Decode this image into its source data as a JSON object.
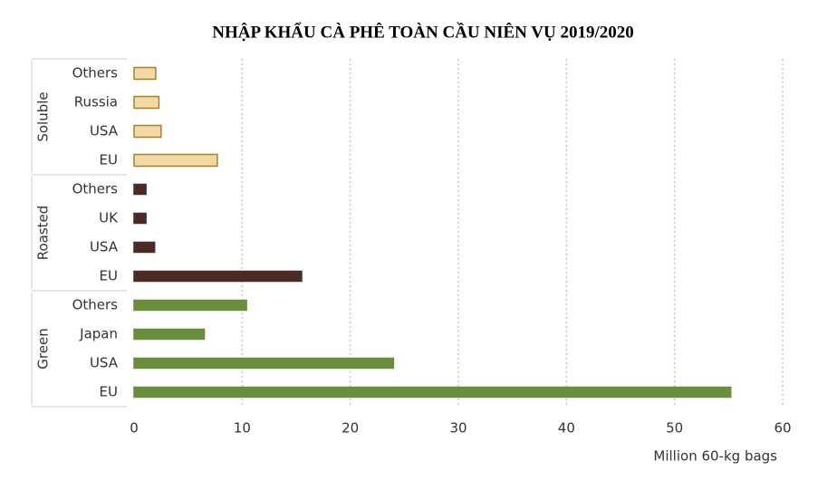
{
  "chart_data": {
    "type": "bar",
    "title": "NHẬP KHẨU CÀ PHÊ TOÀN CẦU NIÊN VỤ 2019/2020",
    "xlabel": "Million 60-kg bags",
    "xlim": [
      0,
      60
    ],
    "xticks": [
      0,
      10,
      20,
      30,
      40,
      50,
      60
    ],
    "grid": true,
    "groups": [
      {
        "name": "Soluble",
        "color": "#f1d9a2",
        "edge": "#a5802f",
        "categories": [
          "Others",
          "Russia",
          "USA",
          "EU"
        ],
        "values": [
          2.0,
          2.3,
          2.5,
          7.7
        ]
      },
      {
        "name": "Roasted",
        "color": "#4b2b24",
        "edge": "#4b2b24",
        "categories": [
          "Others",
          "UK",
          "USA",
          "EU"
        ],
        "values": [
          1.1,
          1.1,
          1.9,
          15.5
        ]
      },
      {
        "name": "Green",
        "color": "#6b8e3e",
        "edge": "#6b8e3e",
        "categories": [
          "Others",
          "Japan",
          "USA",
          "EU"
        ],
        "values": [
          10.4,
          6.5,
          24.0,
          55.2
        ]
      }
    ]
  }
}
